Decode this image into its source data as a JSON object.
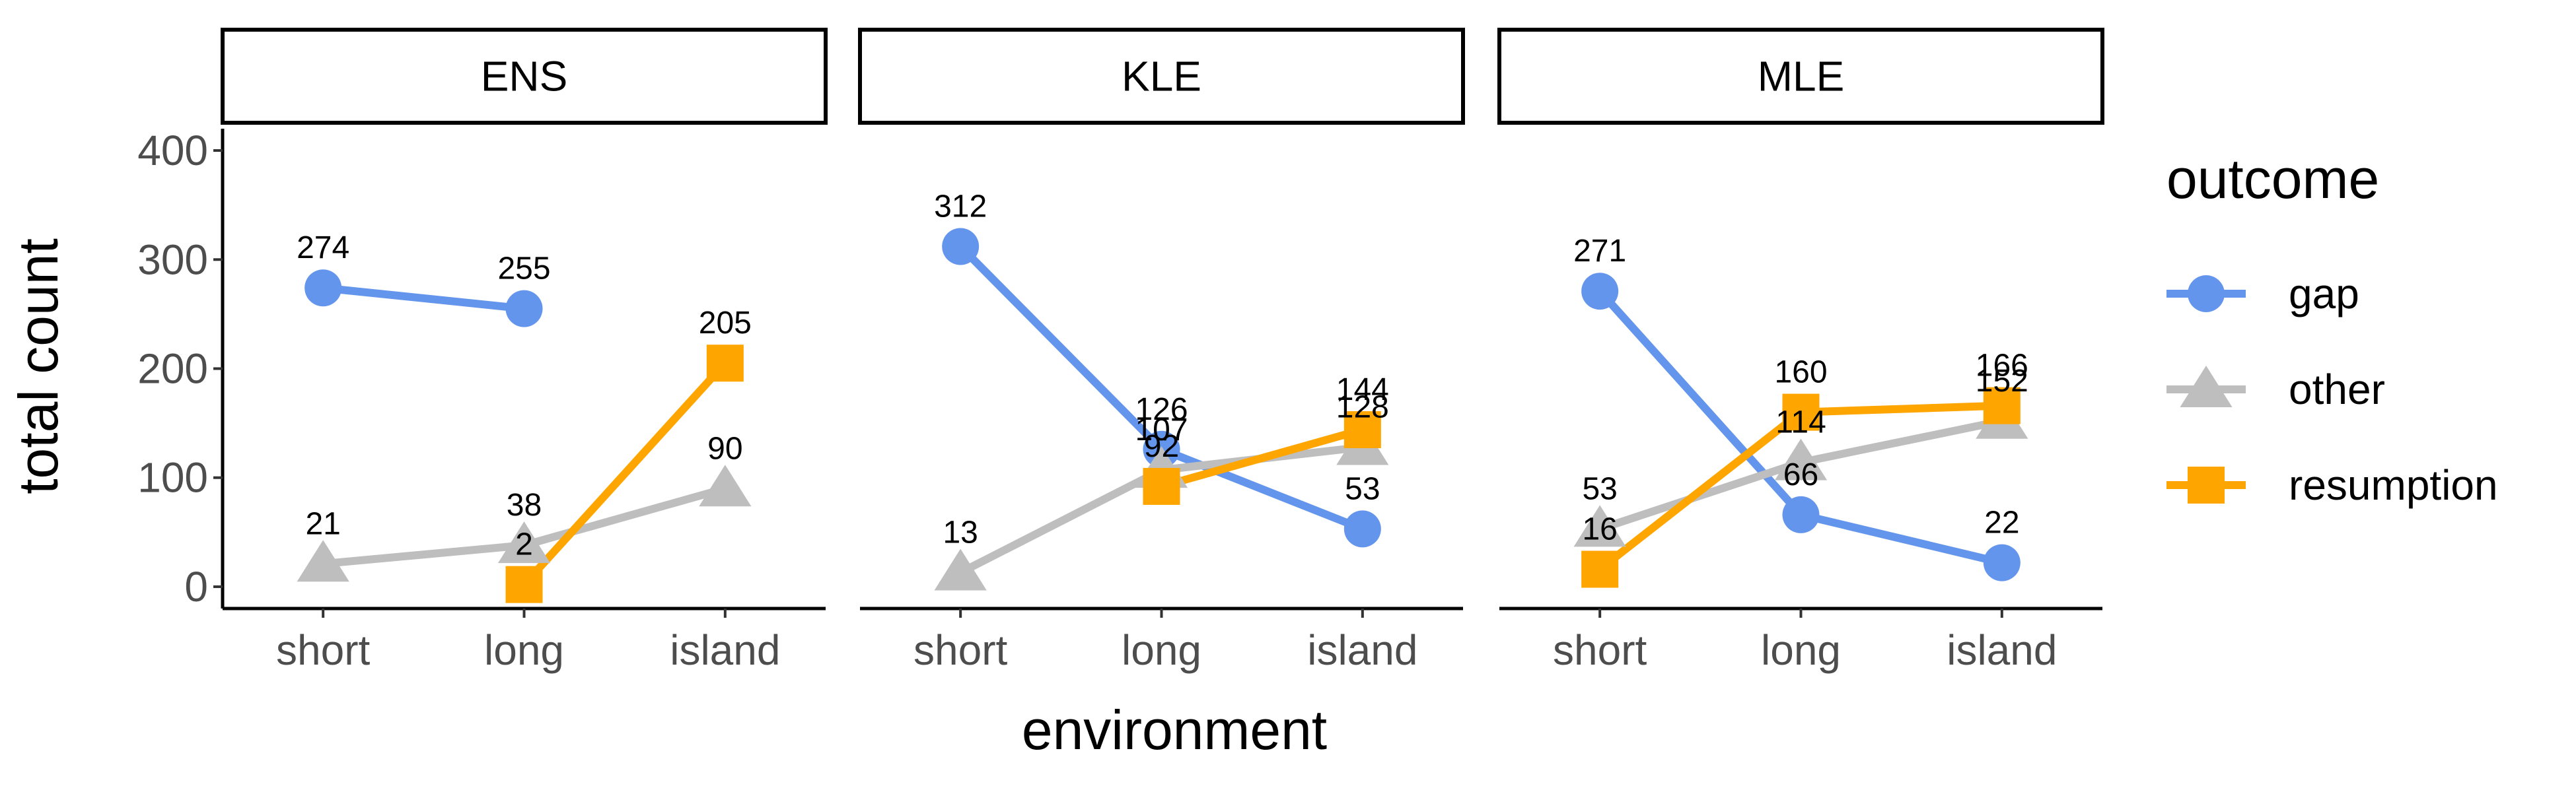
{
  "chart_data": {
    "type": "line",
    "facets": [
      "ENS",
      "KLE",
      "MLE"
    ],
    "categories": [
      "short",
      "long",
      "island"
    ],
    "xlabel": "environment",
    "ylabel": "total count",
    "ylim": [
      -20,
      420
    ],
    "yticks": [
      0,
      100,
      200,
      300,
      400
    ],
    "grid": false,
    "legend": {
      "title": "outcome",
      "placement": "right",
      "entries": [
        "gap",
        "other",
        "resumption"
      ]
    },
    "series": [
      {
        "name": "gap",
        "color": "#6495ED",
        "marker": "circle",
        "values": {
          "ENS": [
            274,
            255,
            null
          ],
          "KLE": [
            312,
            126,
            53
          ],
          "MLE": [
            271,
            66,
            22
          ]
        }
      },
      {
        "name": "other",
        "color": "#BEBEBE",
        "marker": "triangle",
        "values": {
          "ENS": [
            21,
            38,
            90
          ],
          "KLE": [
            13,
            107,
            128
          ],
          "MLE": [
            53,
            114,
            152
          ]
        }
      },
      {
        "name": "resumption",
        "color": "#FFA500",
        "marker": "square",
        "values": {
          "ENS": [
            null,
            2,
            205
          ],
          "KLE": [
            null,
            92,
            144
          ],
          "MLE": [
            16,
            160,
            166
          ]
        }
      }
    ]
  }
}
